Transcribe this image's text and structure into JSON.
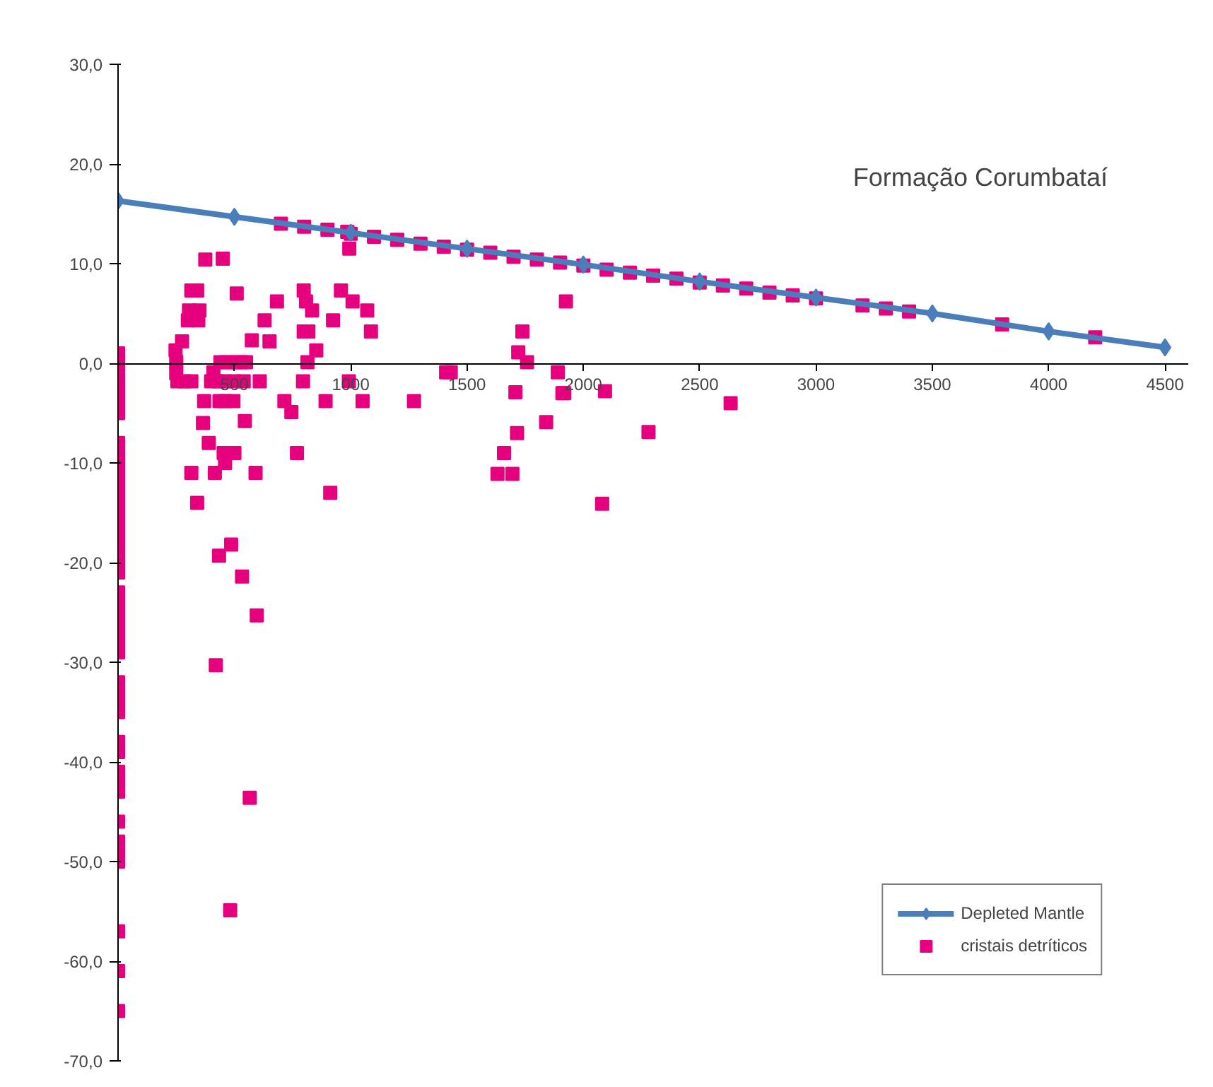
{
  "chart_data": {
    "type": "scatter",
    "annotations": [
      "Formação Corumbataí"
    ],
    "xlim": [
      0,
      4600
    ],
    "ylim": [
      -70,
      30
    ],
    "xticks": [
      500,
      1000,
      1500,
      2000,
      2500,
      3000,
      3500,
      4000,
      4500
    ],
    "yticks": [
      {
        "value": -70,
        "label": "-70,0"
      },
      {
        "value": -60,
        "label": "-60,0"
      },
      {
        "value": -50,
        "label": "-50,0"
      },
      {
        "value": -40,
        "label": "-40,0"
      },
      {
        "value": -30,
        "label": "-30,0"
      },
      {
        "value": -20,
        "label": "-20,0"
      },
      {
        "value": -10,
        "label": "-10,0"
      },
      {
        "value": 0,
        "label": "0,0"
      },
      {
        "value": 10,
        "label": "10,0"
      },
      {
        "value": 20,
        "label": "20,0"
      },
      {
        "value": 30,
        "label": "30,0"
      }
    ],
    "grid": false,
    "legend": "bottom right",
    "series": [
      {
        "name": "Depleted Mantle",
        "type": "line",
        "marker": "diamond",
        "color": "#4a7ebb",
        "x": [
          0,
          500,
          1000,
          1500,
          2000,
          2500,
          3000,
          3500,
          4000,
          4500
        ],
        "values": [
          16.3,
          14.7,
          13.1,
          11.5,
          9.9,
          8.2,
          6.6,
          5.0,
          3.2,
          1.6
        ]
      },
      {
        "name": "cristais detríticos",
        "marker": "square",
        "color": "#e6007e",
        "x": [
          0,
          0,
          0,
          0,
          0,
          0,
          0,
          0,
          0,
          0,
          0,
          0,
          0,
          0,
          0,
          0,
          0,
          0,
          0,
          0,
          0,
          0,
          0,
          0,
          0,
          0,
          0,
          0,
          0,
          0,
          0,
          0,
          0,
          0,
          0,
          0,
          0,
          0,
          0,
          0,
          0,
          0,
          0,
          0,
          700,
          800,
          900,
          985,
          1000,
          1100,
          1200,
          1300,
          1400,
          1500,
          1600,
          1700,
          1800,
          1900,
          2000,
          2100,
          2200,
          2300,
          2400,
          2500,
          2600,
          2700,
          2800,
          2900,
          3000,
          3200,
          3300,
          3400,
          3800,
          4200,
          375,
          450,
          315,
          340,
          510,
          305,
          350,
          300,
          345,
          275,
          247,
          250,
          250,
          255,
          285,
          315,
          410,
          440,
          470,
          500,
          530,
          550,
          400,
          430,
          460,
          500,
          540,
          370,
          436,
          460,
          496,
          365,
          545,
          390,
          454,
          500,
          460,
          315,
          416,
          591,
          340,
          486,
          434,
          533,
          596,
          420,
          566,
          482,
          575,
          630,
          651,
          683,
          609,
          715,
          745,
          769,
          798,
          808,
          834,
          798,
          818,
          852,
          814,
          795,
          892,
          912,
          924,
          958,
          1008,
          994,
          992,
          1051,
          1071,
          1087,
          1272,
          1410,
          1430,
          1925,
          1738,
          1720,
          1758,
          1890,
          1708,
          1910,
          1918,
          2093,
          2633,
          1840,
          1715,
          2280,
          1659,
          1631,
          1695,
          2081
        ],
        "values": [
          1,
          0,
          -1,
          -2,
          -3,
          -4,
          -5,
          -8,
          -9,
          -10,
          -11,
          -12,
          -13,
          -14,
          -15,
          -16,
          -17,
          -18,
          -19,
          -20,
          -21,
          -23,
          -24,
          -25,
          -26,
          -27,
          -28,
          -29,
          -32,
          -33,
          -34,
          -35,
          -38,
          -39,
          -41,
          -42,
          -43,
          -46,
          -48,
          -49,
          -50,
          -57,
          -61,
          -65,
          14.0,
          13.7,
          13.4,
          13.2,
          13.0,
          12.7,
          12.4,
          12.0,
          11.7,
          11.4,
          11.1,
          10.7,
          10.4,
          10.1,
          9.8,
          9.4,
          9.1,
          8.8,
          8.5,
          8.1,
          7.8,
          7.5,
          7.1,
          6.8,
          6.5,
          5.8,
          5.5,
          5.2,
          3.9,
          2.6,
          10.4,
          10.5,
          7.3,
          7.3,
          7.0,
          5.3,
          5.3,
          4.3,
          4.3,
          2.2,
          1.3,
          0.1,
          -1.0,
          -1.8,
          -1.8,
          -1.8,
          -0.9,
          0.1,
          0.1,
          0.1,
          0.1,
          0.1,
          -1.8,
          -1.8,
          -1.8,
          -1.8,
          -1.8,
          -3.8,
          -3.8,
          -3.8,
          -3.8,
          -6.0,
          -5.8,
          -8.0,
          -9.0,
          -9.0,
          -10.0,
          -11.0,
          -11.0,
          -11.0,
          -14.0,
          -18.2,
          -19.3,
          -21.4,
          -25.3,
          -30.3,
          -43.6,
          -54.9,
          2.3,
          4.3,
          2.2,
          6.2,
          -1.8,
          -3.8,
          -4.9,
          -9.0,
          7.3,
          6.2,
          5.3,
          3.2,
          3.2,
          1.3,
          0.1,
          -1.8,
          -3.8,
          -13.0,
          4.3,
          7.3,
          6.2,
          11.5,
          -1.8,
          -3.8,
          5.3,
          3.2,
          -3.8,
          -0.9,
          -0.9,
          6.2,
          3.2,
          1.1,
          0.1,
          -0.9,
          -2.9,
          -3.0,
          -3.0,
          -2.8,
          -4.0,
          -5.9,
          -7.0,
          -6.9,
          -9.0,
          -11.1,
          -11.1,
          -14.1
        ]
      }
    ]
  }
}
